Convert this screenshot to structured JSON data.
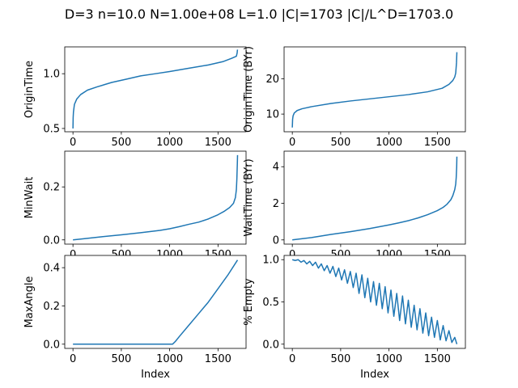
{
  "suptitle": "D=3 n=10.0 N=1.00e+08 L=1.0 |C|=1703 |C|/L^D=1703.0",
  "series_color": "#1f77b4",
  "chart_data": [
    {
      "type": "line",
      "ylabel": "OriginTime",
      "xlabel": "",
      "xlim": [
        -85,
        1790
      ],
      "ylim": [
        0.47,
        1.245
      ],
      "xticks": [
        0,
        500,
        1000,
        1500
      ],
      "yticks": [
        0.5,
        1.0
      ],
      "ytick_labels": [
        "0.5",
        "1.0"
      ],
      "x": [
        0,
        2,
        5,
        15,
        40,
        80,
        150,
        250,
        400,
        550,
        700,
        852,
        1000,
        1200,
        1400,
        1550,
        1640,
        1690,
        1698,
        1700,
        1702
      ],
      "y": [
        0.5,
        0.6,
        0.65,
        0.72,
        0.77,
        0.81,
        0.85,
        0.88,
        0.92,
        0.95,
        0.98,
        1.0,
        1.02,
        1.05,
        1.08,
        1.11,
        1.14,
        1.16,
        1.19,
        1.21,
        1.22
      ]
    },
    {
      "type": "line",
      "ylabel": "OriginTime (BYr)",
      "xlabel": "",
      "xlim": [
        -85,
        1790
      ],
      "ylim": [
        5.0,
        29.0
      ],
      "xticks": [
        0,
        500,
        1000,
        1500
      ],
      "yticks": [
        10,
        20
      ],
      "ytick_labels": [
        "10",
        "20"
      ],
      "x": [
        0,
        3,
        8,
        20,
        50,
        100,
        200,
        400,
        600,
        800,
        1000,
        1200,
        1400,
        1550,
        1620,
        1660,
        1680,
        1690,
        1698,
        1702
      ],
      "y": [
        6.2,
        8.5,
        9.5,
        10.3,
        11.0,
        11.5,
        12.1,
        13.0,
        13.7,
        14.3,
        14.9,
        15.5,
        16.3,
        17.3,
        18.4,
        19.5,
        20.5,
        21.6,
        24.5,
        27.5
      ]
    },
    {
      "type": "line",
      "ylabel": "MinWait",
      "xlabel": "",
      "xlim": [
        -85,
        1790
      ],
      "ylim": [
        -0.016,
        0.335
      ],
      "xticks": [
        0,
        500,
        1000,
        1500
      ],
      "yticks": [
        0.0,
        0.2
      ],
      "ytick_labels": [
        "0.0",
        "0.2"
      ],
      "x": [
        0,
        100,
        300,
        500,
        700,
        900,
        1000,
        1100,
        1200,
        1300,
        1400,
        1500,
        1560,
        1620,
        1660,
        1680,
        1690,
        1695,
        1700,
        1702
      ],
      "y": [
        0.0,
        0.004,
        0.012,
        0.019,
        0.027,
        0.036,
        0.042,
        0.05,
        0.059,
        0.067,
        0.079,
        0.095,
        0.107,
        0.122,
        0.138,
        0.16,
        0.19,
        0.23,
        0.29,
        0.32
      ]
    },
    {
      "type": "line",
      "ylabel": "WaitTime (BYr)",
      "xlabel": "",
      "xlim": [
        -85,
        1790
      ],
      "ylim": [
        -0.23,
        4.85
      ],
      "xticks": [
        0,
        500,
        1000,
        1500
      ],
      "yticks": [
        0,
        2,
        4
      ],
      "ytick_labels": [
        "0",
        "2",
        "4"
      ],
      "x": [
        0,
        200,
        400,
        600,
        800,
        1000,
        1100,
        1200,
        1300,
        1400,
        1500,
        1560,
        1600,
        1640,
        1660,
        1680,
        1690,
        1695,
        1700,
        1702
      ],
      "y": [
        0.0,
        0.13,
        0.3,
        0.45,
        0.62,
        0.82,
        0.93,
        1.05,
        1.2,
        1.38,
        1.6,
        1.78,
        1.95,
        2.2,
        2.42,
        2.75,
        3.05,
        3.4,
        4.0,
        4.55
      ]
    },
    {
      "type": "line",
      "ylabel": "MaxAngle",
      "xlabel": "Index",
      "xlim": [
        -85,
        1790
      ],
      "ylim": [
        -0.022,
        0.464
      ],
      "xticks": [
        0,
        500,
        1000,
        1500
      ],
      "yticks": [
        0.0,
        0.2,
        0.4
      ],
      "ytick_labels": [
        "0.0",
        "0.2",
        "0.4"
      ],
      "x": [
        0,
        1030,
        1060,
        1100,
        1200,
        1300,
        1400,
        1500,
        1600,
        1702
      ],
      "y": [
        0.0,
        0.0,
        0.015,
        0.04,
        0.1,
        0.16,
        0.22,
        0.29,
        0.36,
        0.44
      ]
    },
    {
      "type": "line",
      "ylabel": "% Empty",
      "xlabel": "Index",
      "xlim": [
        -85,
        1790
      ],
      "ylim": [
        -0.05,
        1.05
      ],
      "xticks": [
        0,
        500,
        1000,
        1500
      ],
      "yticks": [
        0.0,
        0.5,
        1.0
      ],
      "ytick_labels": [
        "0.0",
        "0.5",
        "1.0"
      ],
      "x": [
        0,
        30,
        60,
        90,
        120,
        150,
        180,
        210,
        240,
        270,
        300,
        330,
        360,
        390,
        420,
        450,
        480,
        510,
        540,
        570,
        600,
        630,
        660,
        690,
        720,
        750,
        780,
        810,
        840,
        870,
        900,
        930,
        960,
        990,
        1020,
        1050,
        1080,
        1110,
        1140,
        1170,
        1200,
        1230,
        1260,
        1290,
        1320,
        1350,
        1380,
        1410,
        1440,
        1470,
        1500,
        1530,
        1560,
        1590,
        1620,
        1650,
        1680,
        1702
      ],
      "y": [
        1.0,
        0.99,
        1.0,
        0.97,
        0.99,
        0.95,
        0.98,
        0.93,
        0.97,
        0.9,
        0.95,
        0.87,
        0.93,
        0.84,
        0.92,
        0.8,
        0.9,
        0.76,
        0.88,
        0.72,
        0.86,
        0.67,
        0.84,
        0.6,
        0.82,
        0.55,
        0.78,
        0.5,
        0.74,
        0.46,
        0.72,
        0.42,
        0.68,
        0.37,
        0.64,
        0.33,
        0.6,
        0.28,
        0.57,
        0.24,
        0.52,
        0.2,
        0.46,
        0.17,
        0.42,
        0.13,
        0.37,
        0.1,
        0.32,
        0.08,
        0.28,
        0.05,
        0.22,
        0.04,
        0.16,
        0.02,
        0.08,
        0.0
      ]
    }
  ]
}
